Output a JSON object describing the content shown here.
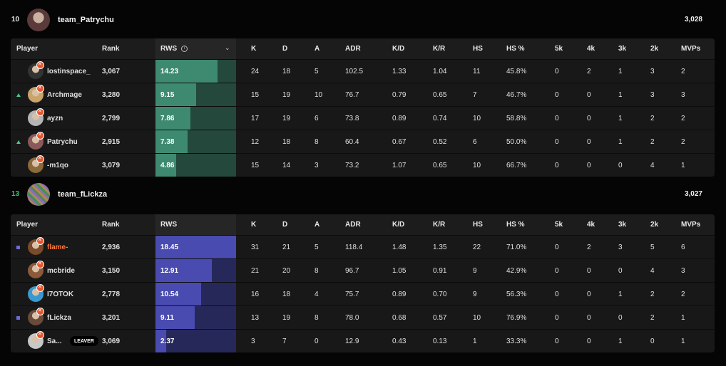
{
  "columns": {
    "player": "Player",
    "rank": "Rank",
    "rws": "RWS",
    "k": "K",
    "d": "D",
    "a": "A",
    "adr": "ADR",
    "kd": "K/D",
    "kr": "K/R",
    "hs": "HS",
    "hs_pct": "HS %",
    "k5": "5k",
    "k4": "4k",
    "k3": "3k",
    "k2": "2k",
    "mvps": "MVPs"
  },
  "colors": {
    "team1_fill": "#3e8a70",
    "team1_track": "#24483c",
    "team2_fill": "#4a4bb0",
    "team2_track": "#27285a",
    "highlight_name": "#ff7a3a",
    "win_score": "#43c07a"
  },
  "teams": [
    {
      "score": "10",
      "name": "team_Patrychu",
      "elo": "3,028",
      "players": [
        {
          "marker": "none",
          "name": "lostinspace_",
          "rank": "3,067",
          "rws": "14.23",
          "rws_frac": 0.77,
          "k": "24",
          "d": "18",
          "a": "5",
          "adr": "102.5",
          "kd": "1.33",
          "kr": "1.04",
          "hs": "11",
          "hs_pct": "45.8%",
          "k5": "0",
          "k4": "2",
          "k3": "1",
          "k2": "3",
          "mvps": "2",
          "avatar_color": "#333333"
        },
        {
          "marker": "up",
          "name": "Archmage",
          "rank": "3,280",
          "rws": "9.15",
          "rws_frac": 0.5,
          "k": "15",
          "d": "19",
          "a": "10",
          "adr": "76.7",
          "kd": "0.79",
          "kr": "0.65",
          "hs": "7",
          "hs_pct": "46.7%",
          "k5": "0",
          "k4": "0",
          "k3": "1",
          "k2": "3",
          "mvps": "3",
          "avatar_color": "#c9a46b"
        },
        {
          "marker": "none",
          "name": "ayzn",
          "rank": "2,799",
          "rws": "7.86",
          "rws_frac": 0.43,
          "k": "17",
          "d": "19",
          "a": "6",
          "adr": "73.8",
          "kd": "0.89",
          "kr": "0.74",
          "hs": "10",
          "hs_pct": "58.8%",
          "k5": "0",
          "k4": "0",
          "k3": "1",
          "k2": "2",
          "mvps": "2",
          "avatar_color": "#b5b5b5"
        },
        {
          "marker": "up",
          "name": "Patrychu",
          "rank": "2,915",
          "rws": "7.38",
          "rws_frac": 0.4,
          "k": "12",
          "d": "18",
          "a": "8",
          "adr": "60.4",
          "kd": "0.67",
          "kr": "0.52",
          "hs": "6",
          "hs_pct": "50.0%",
          "k5": "0",
          "k4": "0",
          "k3": "1",
          "k2": "2",
          "mvps": "2",
          "avatar_color": "#8a5a5a"
        },
        {
          "marker": "none",
          "name": "-m1qo",
          "rank": "3,079",
          "rws": "4.86",
          "rws_frac": 0.26,
          "k": "15",
          "d": "14",
          "a": "3",
          "adr": "73.2",
          "kd": "1.07",
          "kr": "0.65",
          "hs": "10",
          "hs_pct": "66.7%",
          "k5": "0",
          "k4": "0",
          "k3": "0",
          "k2": "4",
          "mvps": "1",
          "avatar_color": "#8a6a3a"
        }
      ]
    },
    {
      "score": "13",
      "name": "team_fLickza",
      "elo": "3,027",
      "players": [
        {
          "marker": "party",
          "name": "flame-",
          "rank": "2,936",
          "rws": "18.45",
          "rws_frac": 1.0,
          "k": "31",
          "d": "21",
          "a": "5",
          "adr": "118.4",
          "kd": "1.48",
          "kr": "1.35",
          "hs": "22",
          "hs_pct": "71.0%",
          "k5": "0",
          "k4": "2",
          "k3": "3",
          "k2": "5",
          "mvps": "6",
          "avatar_color": "#7a4a2a",
          "highlight": true
        },
        {
          "marker": "none",
          "name": "mcbride",
          "rank": "3,150",
          "rws": "12.91",
          "rws_frac": 0.7,
          "k": "21",
          "d": "20",
          "a": "8",
          "adr": "96.7",
          "kd": "1.05",
          "kr": "0.91",
          "hs": "9",
          "hs_pct": "42.9%",
          "k5": "0",
          "k4": "0",
          "k3": "0",
          "k2": "4",
          "mvps": "3",
          "avatar_color": "#8a5a3a"
        },
        {
          "marker": "none",
          "name": "I7OTOK",
          "rank": "2,778",
          "rws": "10.54",
          "rws_frac": 0.57,
          "k": "16",
          "d": "18",
          "a": "4",
          "adr": "75.7",
          "kd": "0.89",
          "kr": "0.70",
          "hs": "9",
          "hs_pct": "56.3%",
          "k5": "0",
          "k4": "0",
          "k3": "1",
          "k2": "2",
          "mvps": "2",
          "avatar_color": "#3a9ad0"
        },
        {
          "marker": "party",
          "name": "fLickza",
          "rank": "3,201",
          "rws": "9.11",
          "rws_frac": 0.49,
          "k": "13",
          "d": "19",
          "a": "8",
          "adr": "78.0",
          "kd": "0.68",
          "kr": "0.57",
          "hs": "10",
          "hs_pct": "76.9%",
          "k5": "0",
          "k4": "0",
          "k3": "0",
          "k2": "2",
          "mvps": "1",
          "avatar_color": "#6a4a3a"
        },
        {
          "marker": "none",
          "name": "Sa...",
          "rank": "3,069",
          "rws": "2.37",
          "rws_frac": 0.13,
          "k": "3",
          "d": "7",
          "a": "0",
          "adr": "12.9",
          "kd": "0.43",
          "kr": "0.13",
          "hs": "1",
          "hs_pct": "33.3%",
          "k5": "0",
          "k4": "0",
          "k3": "1",
          "k2": "0",
          "mvps": "1",
          "avatar_color": "#c8c8c8",
          "leaver": "LEAVER"
        }
      ]
    }
  ]
}
